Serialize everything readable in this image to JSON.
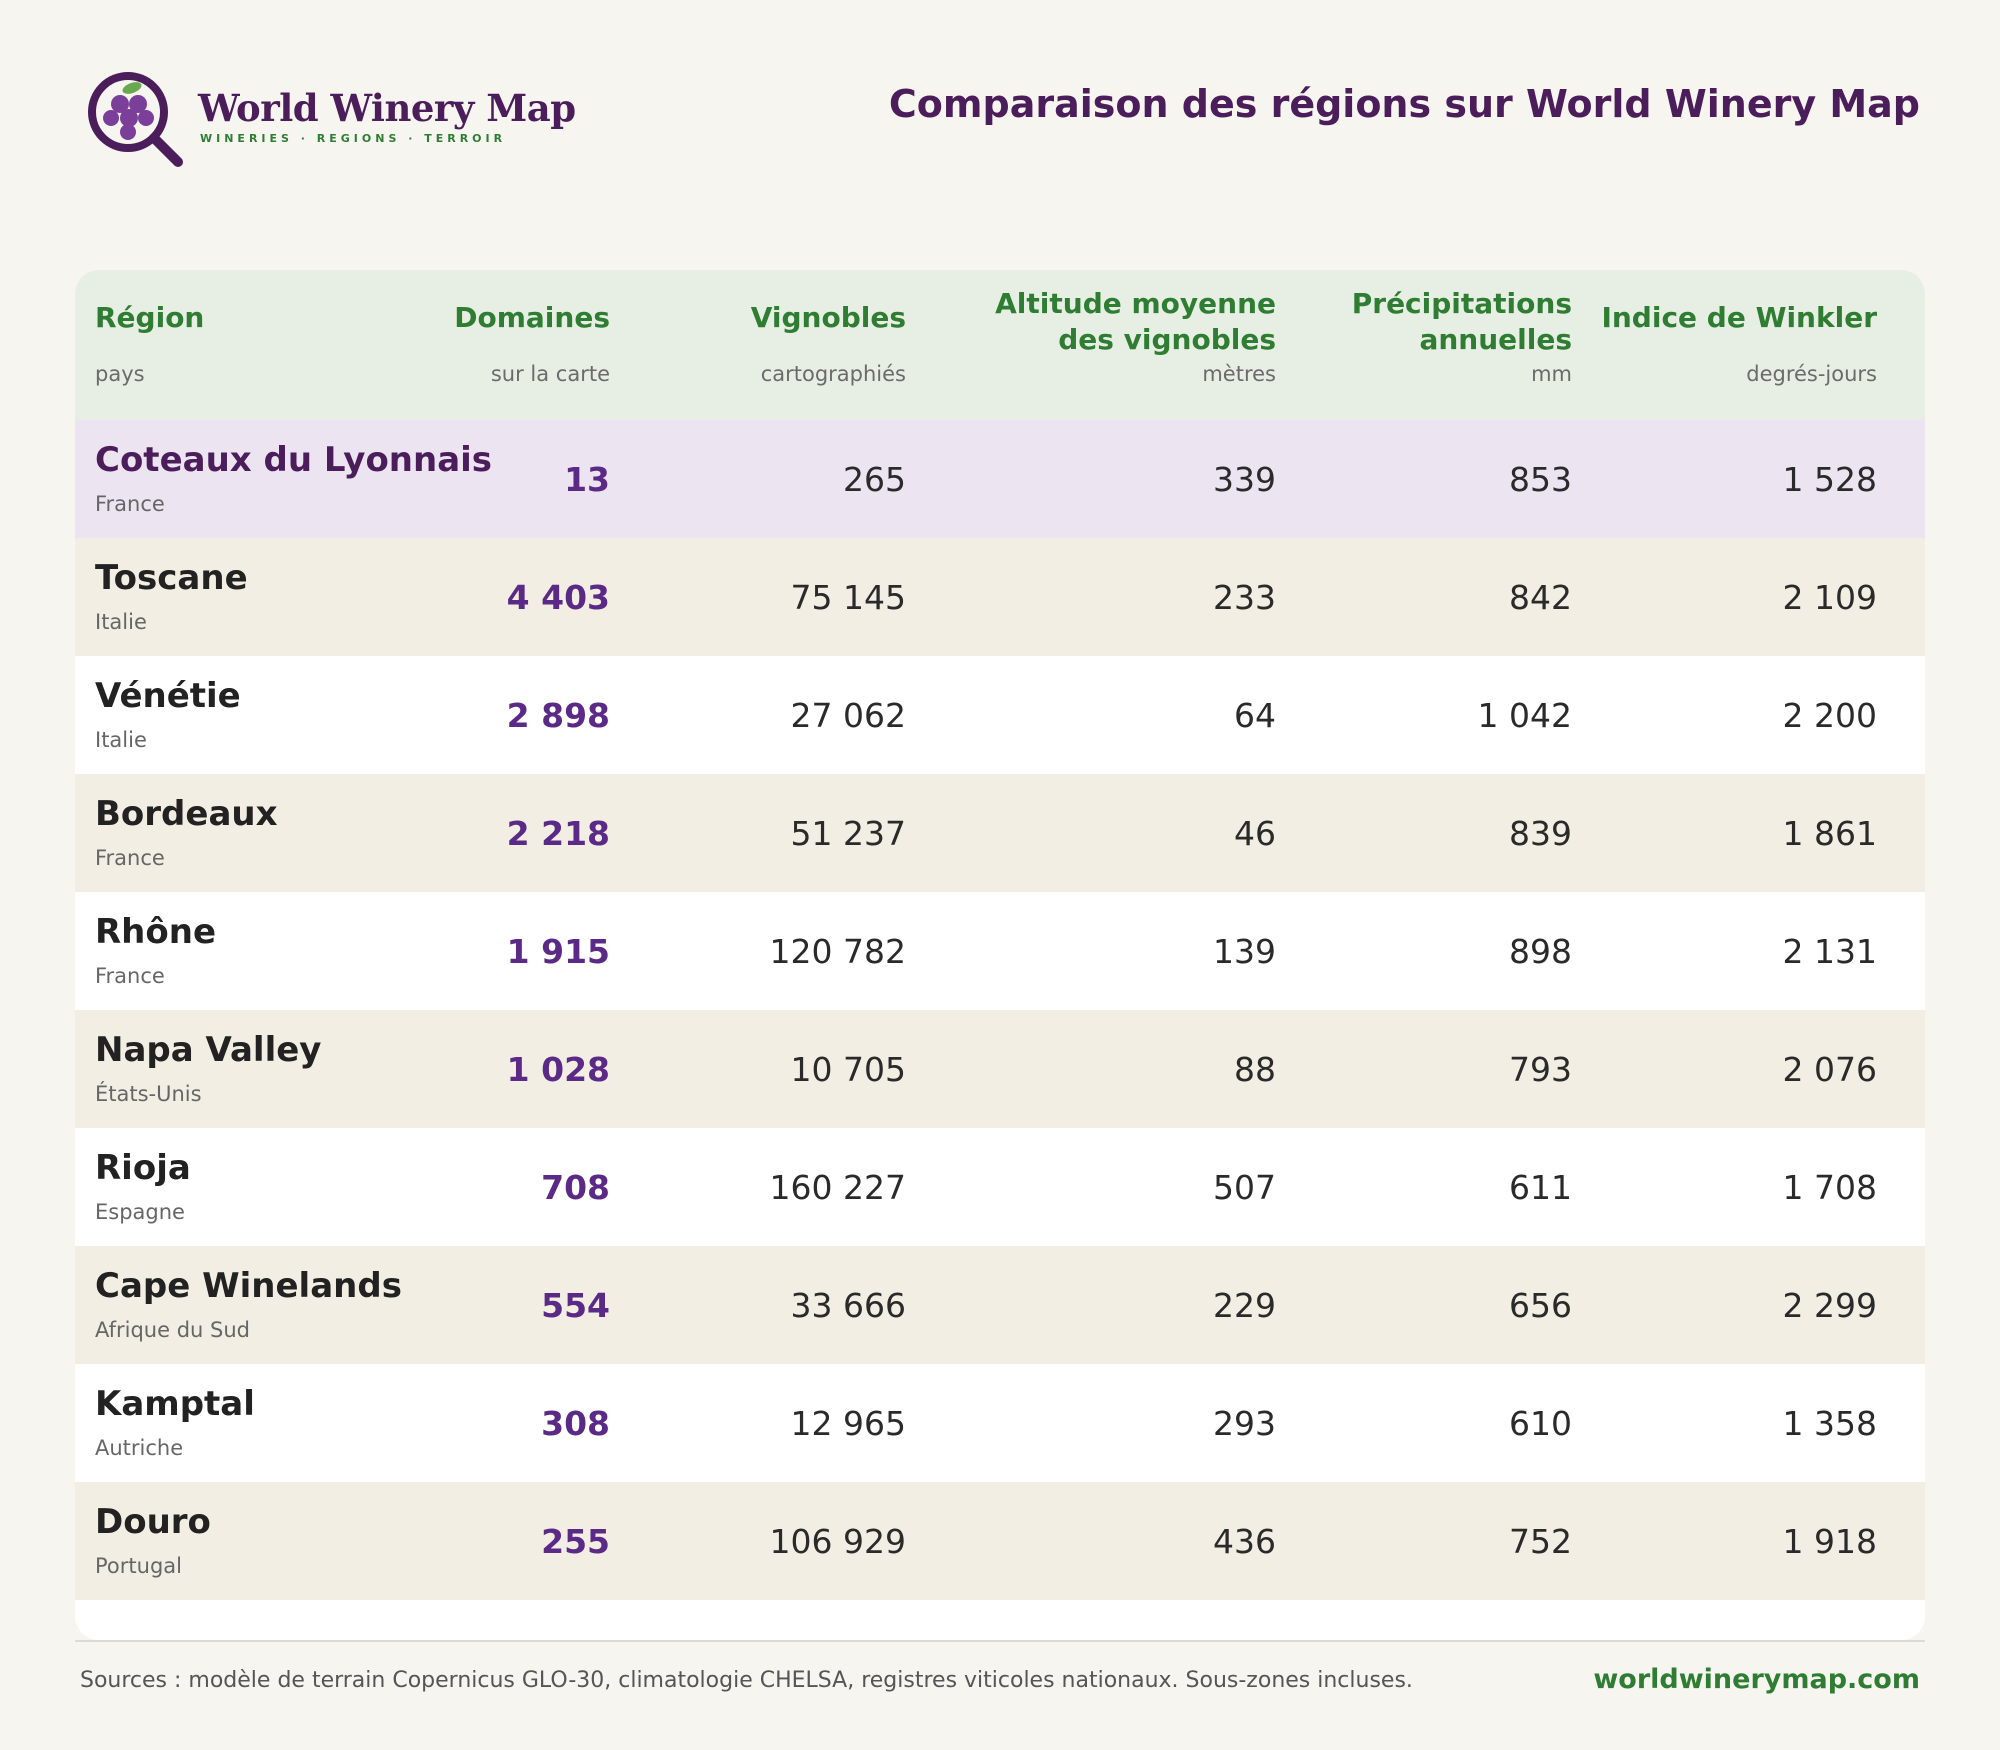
{
  "brand": {
    "name": "World Winery Map",
    "tagline": "WINERIES · REGIONS · TERROIR"
  },
  "page": {
    "title": "Comparaison des régions sur World Winery Map"
  },
  "table": {
    "columns": [
      {
        "label": "Région",
        "sub": "pays"
      },
      {
        "label": "Domaines",
        "sub": "sur la carte"
      },
      {
        "label": "Vignobles",
        "sub": "cartographiés"
      },
      {
        "label": "Altitude moyenne des vignobles",
        "sub": "mètres"
      },
      {
        "label": "Précipitations annuelles",
        "sub": "mm"
      },
      {
        "label": "Indice de Winkler",
        "sub": "degrés-jours"
      }
    ],
    "rows": [
      {
        "region": "Coteaux du Lyonnais",
        "country": "France",
        "domaines": "13",
        "vignobles": "265",
        "altitude": "339",
        "precip": "853",
        "winkler": "1 528"
      },
      {
        "region": "Toscane",
        "country": "Italie",
        "domaines": "4 403",
        "vignobles": "75 145",
        "altitude": "233",
        "precip": "842",
        "winkler": "2 109"
      },
      {
        "region": "Vénétie",
        "country": "Italie",
        "domaines": "2 898",
        "vignobles": "27 062",
        "altitude": "64",
        "precip": "1 042",
        "winkler": "2 200"
      },
      {
        "region": "Bordeaux",
        "country": "France",
        "domaines": "2 218",
        "vignobles": "51 237",
        "altitude": "46",
        "precip": "839",
        "winkler": "1 861"
      },
      {
        "region": "Rhône",
        "country": "France",
        "domaines": "1 915",
        "vignobles": "120 782",
        "altitude": "139",
        "precip": "898",
        "winkler": "2 131"
      },
      {
        "region": "Napa Valley",
        "country": "États-Unis",
        "domaines": "1 028",
        "vignobles": "10 705",
        "altitude": "88",
        "precip": "793",
        "winkler": "2 076"
      },
      {
        "region": "Rioja",
        "country": "Espagne",
        "domaines": "708",
        "vignobles": "160 227",
        "altitude": "507",
        "precip": "611",
        "winkler": "1 708"
      },
      {
        "region": "Cape Winelands",
        "country": "Afrique du Sud",
        "domaines": "554",
        "vignobles": "33 666",
        "altitude": "229",
        "precip": "656",
        "winkler": "2 299"
      },
      {
        "region": "Kamptal",
        "country": "Autriche",
        "domaines": "308",
        "vignobles": "12 965",
        "altitude": "293",
        "precip": "610",
        "winkler": "1 358"
      },
      {
        "region": "Douro",
        "country": "Portugal",
        "domaines": "255",
        "vignobles": "106 929",
        "altitude": "436",
        "precip": "752",
        "winkler": "1 918"
      }
    ]
  },
  "footer": {
    "sources": "Sources : modèle de terrain Copernicus GLO-30, climatologie CHELSA, registres viticoles nationaux. Sous-zones incluses.",
    "url": "worldwinerymap.com"
  },
  "colors": {
    "brand_purple": "#4b1d5a",
    "accent_green": "#2f7d32",
    "number_purple": "#5a2a86",
    "highlight_row": "#ede4f2",
    "alt_row": "#f2eee4",
    "header_bg": "#e7eee3"
  }
}
